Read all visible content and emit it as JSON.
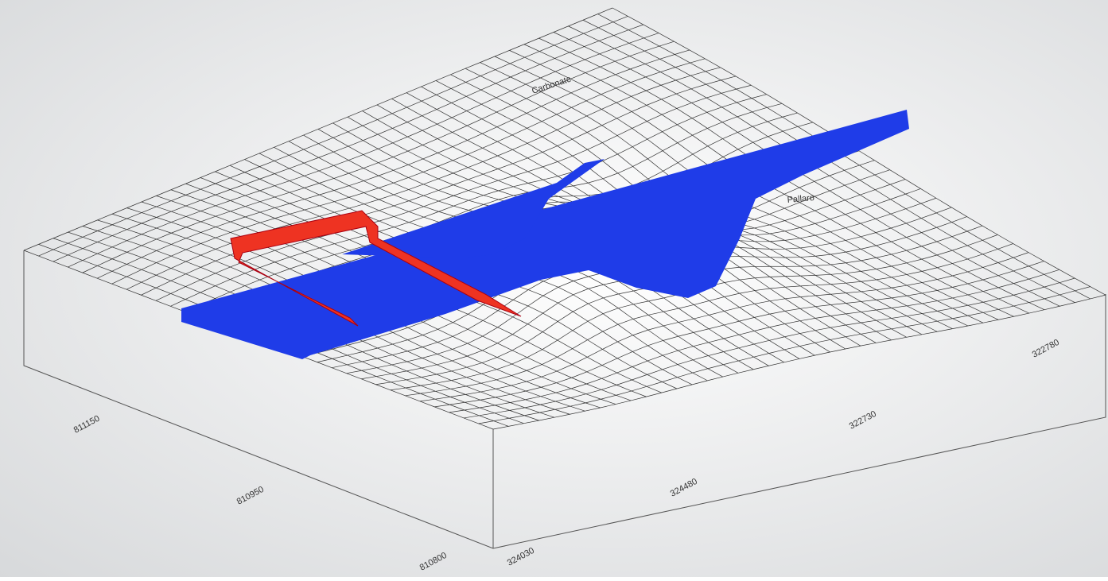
{
  "surface": {
    "labels": [
      "Carbonate",
      "Pallaro"
    ]
  },
  "axes": {
    "left": [
      "811150",
      "810950",
      "810800"
    ],
    "right": [
      "324030",
      "324480",
      "322730",
      "322780"
    ]
  }
}
